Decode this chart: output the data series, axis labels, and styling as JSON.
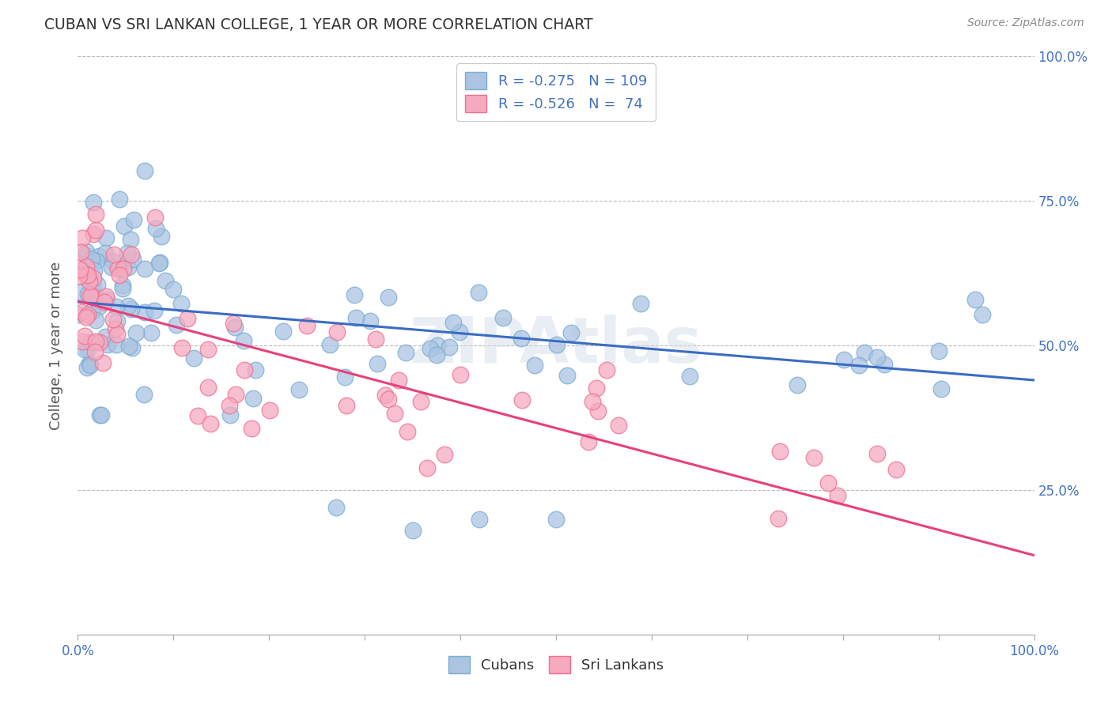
{
  "title": "CUBAN VS SRI LANKAN COLLEGE, 1 YEAR OR MORE CORRELATION CHART",
  "source": "Source: ZipAtlas.com",
  "ylabel": "College, 1 year or more",
  "xlim": [
    0.0,
    1.0
  ],
  "ylim": [
    0.0,
    1.0
  ],
  "x_tick_labels_edge": [
    "0.0%",
    "100.0%"
  ],
  "y_tick_labels": [
    "25.0%",
    "50.0%",
    "75.0%",
    "100.0%"
  ],
  "y_ticks": [
    0.25,
    0.5,
    0.75,
    1.0
  ],
  "cubans_R": -0.275,
  "cubans_N": 109,
  "srilankans_R": -0.526,
  "srilankans_N": 74,
  "cubans_color": "#aac4e2",
  "srilankans_color": "#f5aabf",
  "cubans_edge_color": "#7aadd4",
  "srilankans_edge_color": "#f07090",
  "cubans_line_color": "#3a6cc4",
  "srilankans_line_color": "#e8407a",
  "watermark": "ZIPAtlas",
  "background_color": "#ffffff",
  "grid_color": "#bbbbbb",
  "title_color": "#333333",
  "source_color": "#888888",
  "ylabel_color": "#555555",
  "tick_color": "#4472c4",
  "legend_text_color": "#4472c4",
  "cubans_seed": 101,
  "srilankans_seed": 202
}
